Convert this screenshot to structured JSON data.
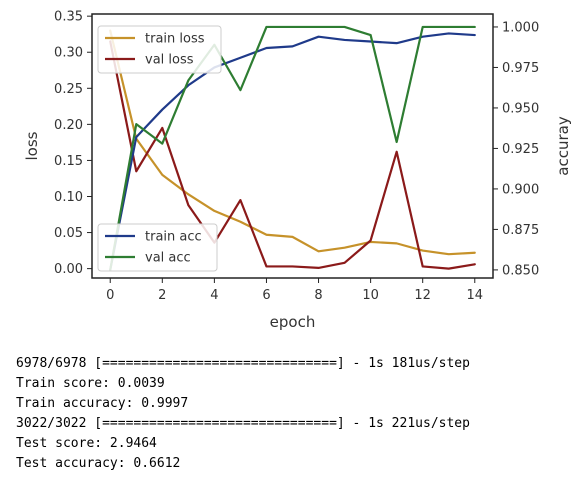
{
  "chart_data": {
    "type": "line",
    "xlabel": "epoch",
    "ylabel_left": "loss",
    "ylabel_right": "accuray",
    "x": [
      0,
      1,
      2,
      3,
      4,
      5,
      6,
      7,
      8,
      9,
      10,
      11,
      12,
      13,
      14
    ],
    "x_ticks": [
      0,
      2,
      4,
      6,
      8,
      10,
      12,
      14
    ],
    "xlim": [
      -0.7,
      14.7
    ],
    "ylim_left": [
      -0.013,
      0.353
    ],
    "ylim_right": [
      0.845,
      1.008
    ],
    "y_ticks_left": [
      "0.00",
      "0.05",
      "0.10",
      "0.15",
      "0.20",
      "0.25",
      "0.30",
      "0.35"
    ],
    "y_ticks_right": [
      "0.850",
      "0.875",
      "0.900",
      "0.925",
      "0.950",
      "0.975",
      "1.000"
    ],
    "grid": false,
    "legend_left_axis": "top-left",
    "legend_right_axis": "bottom-left",
    "series_left": [
      {
        "name": "train loss",
        "color": "#c6922a",
        "values": [
          0.33,
          0.18,
          0.13,
          0.103,
          0.08,
          0.065,
          0.047,
          0.044,
          0.024,
          0.029,
          0.037,
          0.035,
          0.025,
          0.02,
          0.022
        ]
      },
      {
        "name": "val loss",
        "color": "#8b1a1a",
        "values": [
          0.315,
          0.135,
          0.195,
          0.088,
          0.036,
          0.095,
          0.003,
          0.003,
          0.001,
          0.008,
          0.039,
          0.162,
          0.003,
          0.0,
          0.006
        ]
      }
    ],
    "series_right": [
      {
        "name": "train acc",
        "color": "#1f3a8a",
        "values": [
          0.85,
          0.932,
          0.949,
          0.964,
          0.975,
          0.981,
          0.987,
          0.988,
          0.994,
          0.992,
          0.991,
          0.99,
          0.994,
          0.996,
          0.995
        ]
      },
      {
        "name": "val acc",
        "color": "#2e7d32",
        "values": [
          0.85,
          0.94,
          0.928,
          0.967,
          0.989,
          0.961,
          1.0,
          1.0,
          1.0,
          1.0,
          0.995,
          0.929,
          1.0,
          1.0,
          1.0
        ]
      }
    ]
  },
  "console": {
    "lines": [
      "6978/6978 [==============================] - 1s 181us/step",
      "Train score: 0.0039",
      "Train accuracy: 0.9997",
      "3022/3022 [==============================] - 1s 221us/step",
      "Test score: 2.9464",
      "Test accuracy: 0.6612"
    ]
  }
}
